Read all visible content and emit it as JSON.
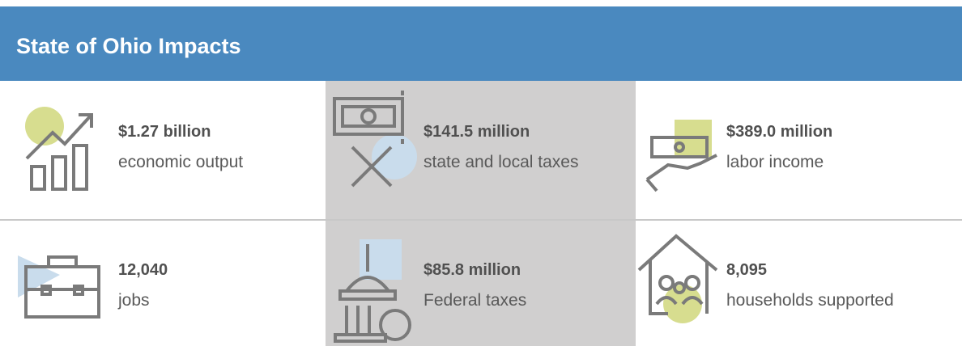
{
  "header": {
    "title": "State of Ohio Impacts"
  },
  "items": [
    {
      "value": "$1.27 billion",
      "label": "economic output"
    },
    {
      "value": "$141.5 million",
      "label": "state and local taxes"
    },
    {
      "value": "$389.0 million",
      "label": "labor income"
    },
    {
      "value": "12,040",
      "label": "jobs"
    },
    {
      "value": "$85.8 million",
      "label": "Federal taxes"
    },
    {
      "value": "8,095",
      "label": "households supported"
    }
  ]
}
